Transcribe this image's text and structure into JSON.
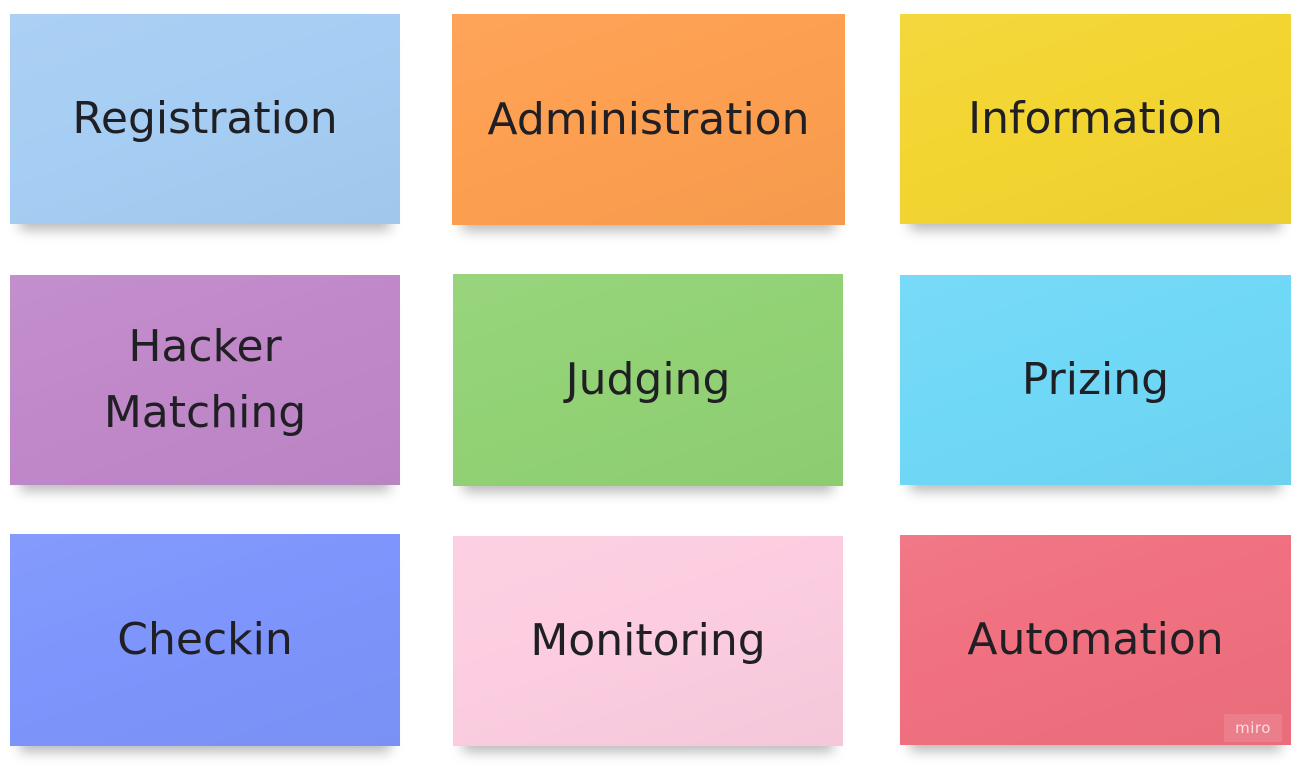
{
  "notes": [
    {
      "label": "Registration",
      "color": "#a6cdf3"
    },
    {
      "label": "Administration",
      "color": "#fd9f50"
    },
    {
      "label": "Information",
      "color": "#f3d531"
    },
    {
      "label": "Hacker Matching",
      "color": "#c088c9"
    },
    {
      "label": "Judging",
      "color": "#92d275"
    },
    {
      "label": "Prizing",
      "color": "#70d8f7"
    },
    {
      "label": "Checkin",
      "color": "#7d95fc"
    },
    {
      "label": "Monitoring",
      "color": "#fccde0"
    },
    {
      "label": "Automation",
      "color": "#f0707f"
    }
  ],
  "watermark": "miro"
}
